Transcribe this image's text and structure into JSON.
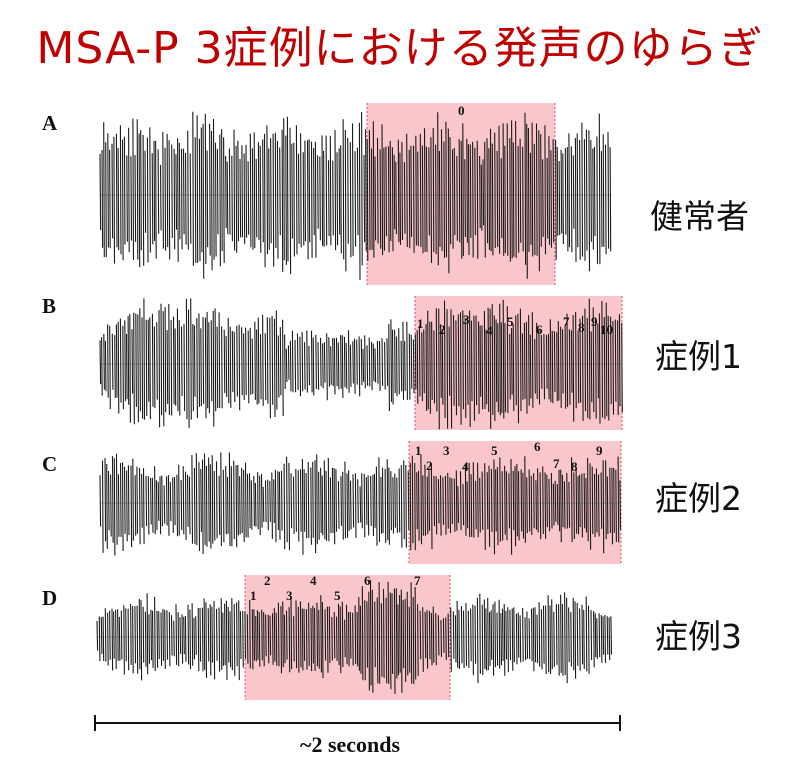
{
  "title": "MSA-P 3症例における発声のゆらぎ",
  "panels": [
    {
      "letter": "A",
      "label": "健常者",
      "markers": [
        "0"
      ]
    },
    {
      "letter": "B",
      "label": "症例1",
      "markers": [
        "1",
        "2",
        "3",
        "4",
        "5",
        "6",
        "7",
        "8",
        "9",
        "10"
      ]
    },
    {
      "letter": "C",
      "label": "症例2",
      "markers": [
        "1",
        "2",
        "3",
        "4",
        "5",
        "6",
        "7",
        "8",
        "9"
      ]
    },
    {
      "letter": "D",
      "label": "症例3",
      "markers": [
        "1",
        "2",
        "3",
        "4",
        "5",
        "6",
        "7"
      ]
    }
  ],
  "scale": {
    "label": "~2 seconds"
  },
  "colors": {
    "title": "#c00000",
    "highlight": "#f9c6cb",
    "highlight_edge": "#e05060",
    "waveform": "#1a1a1a"
  }
}
